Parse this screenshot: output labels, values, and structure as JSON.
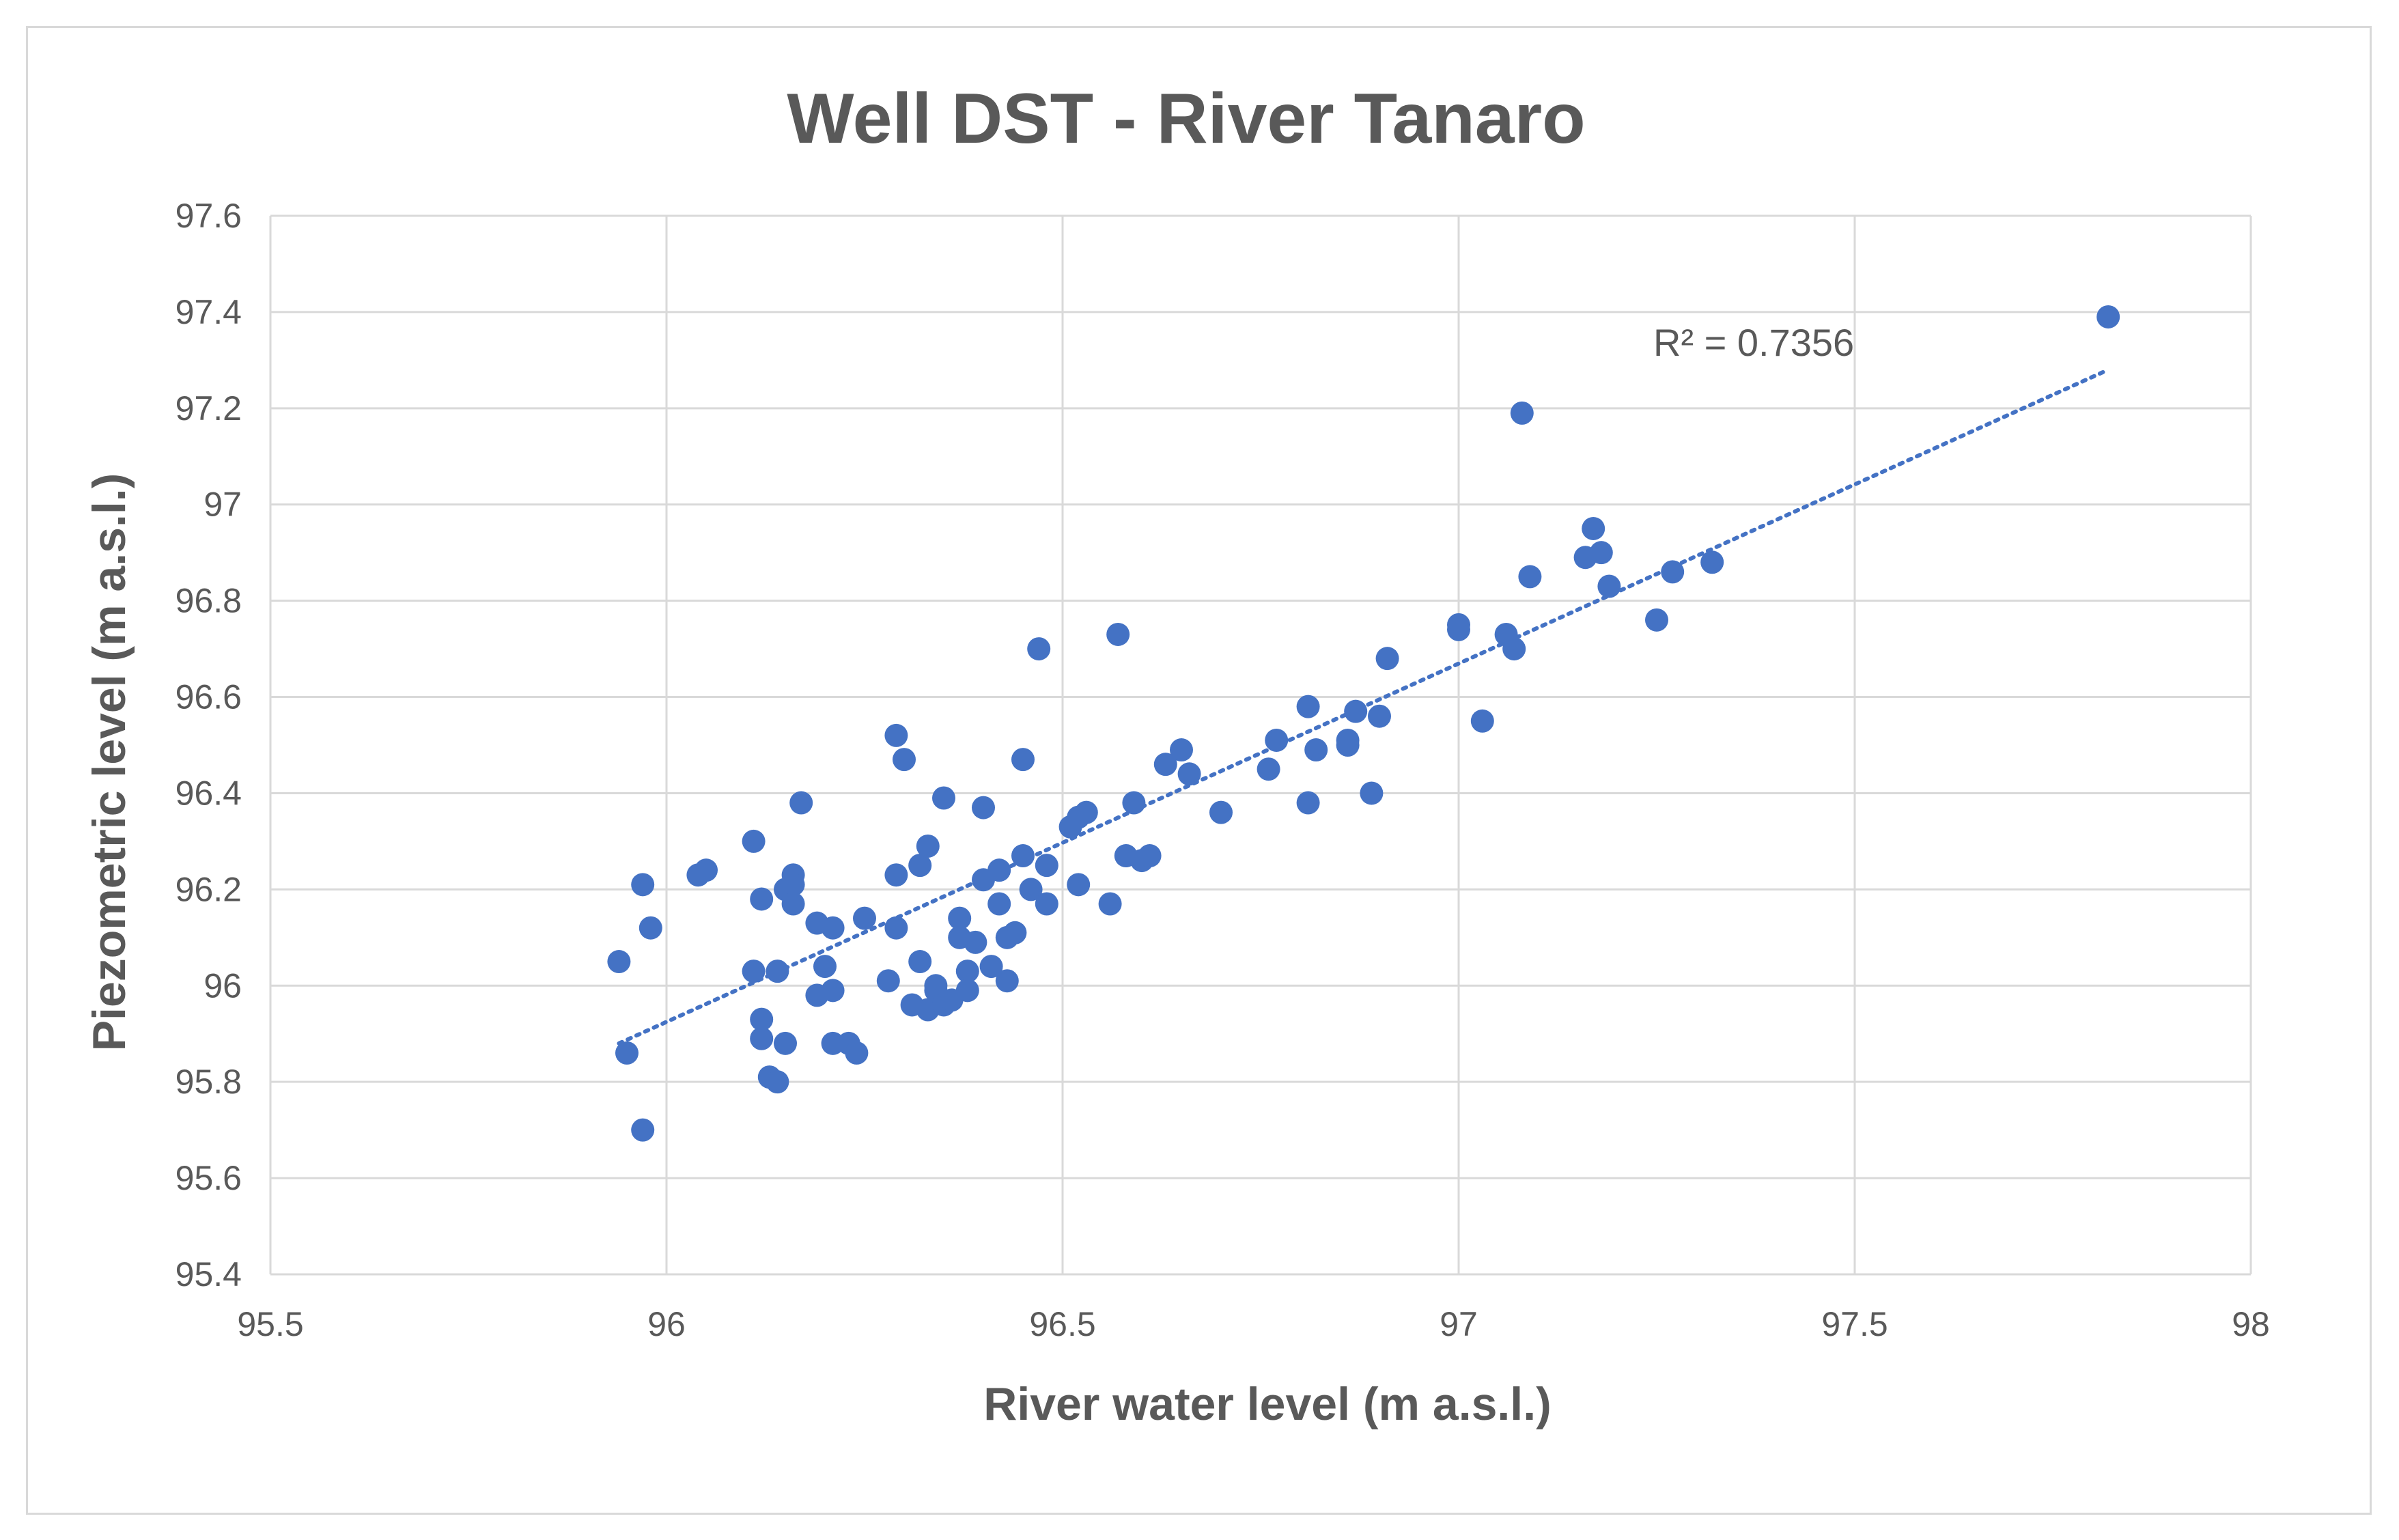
{
  "chart_data": {
    "type": "scatter",
    "title": "Well DST - River Tanaro",
    "xlabel": "River water level (m a.s.l.)",
    "ylabel": "Piezometric level (m a.s.l.)",
    "xlim": [
      95.5,
      98
    ],
    "ylim": [
      95.4,
      97.6
    ],
    "x_ticks": [
      "95.5",
      "96",
      "96.5",
      "97",
      "97.5",
      "98"
    ],
    "y_ticks": [
      "95.4",
      "95.6",
      "95.8",
      "96",
      "96.2",
      "96.4",
      "96.6",
      "96.8",
      "97",
      "97.2",
      "97.4",
      "97.6"
    ],
    "grid": true,
    "legend": "none",
    "colors": {
      "marker": "#4472c4",
      "trendline": "#4472c4",
      "grid": "#d9d9d9",
      "text": "#595959"
    },
    "series": [
      {
        "marker": "circle",
        "points": [
          [
            95.94,
            96.05
          ],
          [
            95.95,
            95.86
          ],
          [
            95.97,
            95.7
          ],
          [
            95.97,
            96.21
          ],
          [
            95.98,
            96.12
          ],
          [
            96.04,
            96.23
          ],
          [
            96.05,
            96.24
          ],
          [
            96.11,
            96.3
          ],
          [
            96.11,
            96.03
          ],
          [
            96.12,
            96.18
          ],
          [
            96.12,
            95.93
          ],
          [
            96.12,
            95.89
          ],
          [
            96.13,
            95.81
          ],
          [
            96.14,
            96.03
          ],
          [
            96.14,
            95.8
          ],
          [
            96.15,
            96.2
          ],
          [
            96.15,
            95.88
          ],
          [
            96.16,
            96.23
          ],
          [
            96.16,
            96.21
          ],
          [
            96.16,
            96.17
          ],
          [
            96.17,
            96.38
          ],
          [
            96.19,
            96.13
          ],
          [
            96.19,
            95.98
          ],
          [
            96.2,
            96.04
          ],
          [
            96.21,
            96.12
          ],
          [
            96.21,
            95.99
          ],
          [
            96.21,
            95.88
          ],
          [
            96.23,
            95.88
          ],
          [
            96.24,
            95.86
          ],
          [
            96.25,
            96.14
          ],
          [
            96.28,
            96.01
          ],
          [
            96.29,
            96.52
          ],
          [
            96.29,
            96.23
          ],
          [
            96.29,
            96.12
          ],
          [
            96.3,
            96.47
          ],
          [
            96.31,
            95.96
          ],
          [
            96.32,
            96.25
          ],
          [
            96.32,
            96.05
          ],
          [
            96.33,
            96.29
          ],
          [
            96.33,
            95.95
          ],
          [
            96.34,
            95.99
          ],
          [
            96.34,
            96.0
          ],
          [
            96.35,
            96.39
          ],
          [
            96.35,
            95.96
          ],
          [
            96.36,
            95.97
          ],
          [
            96.37,
            96.14
          ],
          [
            96.37,
            96.1
          ],
          [
            96.38,
            96.03
          ],
          [
            96.38,
            95.99
          ],
          [
            96.39,
            96.09
          ],
          [
            96.4,
            96.37
          ],
          [
            96.4,
            96.22
          ],
          [
            96.41,
            96.04
          ],
          [
            96.42,
            96.24
          ],
          [
            96.42,
            96.17
          ],
          [
            96.43,
            96.1
          ],
          [
            96.43,
            96.01
          ],
          [
            96.44,
            96.11
          ],
          [
            96.45,
            96.47
          ],
          [
            96.45,
            96.27
          ],
          [
            96.46,
            96.2
          ],
          [
            96.47,
            96.7
          ],
          [
            96.48,
            96.25
          ],
          [
            96.48,
            96.17
          ],
          [
            96.51,
            96.33
          ],
          [
            96.52,
            96.35
          ],
          [
            96.52,
            96.21
          ],
          [
            96.53,
            96.36
          ],
          [
            96.56,
            96.17
          ],
          [
            96.57,
            96.73
          ],
          [
            96.58,
            96.27
          ],
          [
            96.59,
            96.38
          ],
          [
            96.6,
            96.26
          ],
          [
            96.61,
            96.27
          ],
          [
            96.63,
            96.46
          ],
          [
            96.65,
            96.49
          ],
          [
            96.66,
            96.44
          ],
          [
            96.7,
            96.36
          ],
          [
            96.76,
            96.45
          ],
          [
            96.77,
            96.51
          ],
          [
            96.81,
            96.58
          ],
          [
            96.81,
            96.38
          ],
          [
            96.82,
            96.49
          ],
          [
            96.86,
            96.51
          ],
          [
            96.86,
            96.5
          ],
          [
            96.87,
            96.57
          ],
          [
            96.89,
            96.4
          ],
          [
            96.9,
            96.56
          ],
          [
            96.91,
            96.68
          ],
          [
            97.0,
            96.75
          ],
          [
            97.0,
            96.74
          ],
          [
            97.03,
            96.55
          ],
          [
            97.06,
            96.73
          ],
          [
            97.07,
            96.7
          ],
          [
            97.08,
            97.19
          ],
          [
            97.09,
            96.85
          ],
          [
            97.16,
            96.89
          ],
          [
            97.17,
            96.95
          ],
          [
            97.18,
            96.9
          ],
          [
            97.19,
            96.83
          ],
          [
            97.25,
            96.76
          ],
          [
            97.27,
            96.86
          ],
          [
            97.32,
            96.88
          ],
          [
            97.82,
            97.39
          ]
        ]
      }
    ],
    "trendline": {
      "type": "linear",
      "style": "dotted",
      "x_range": [
        95.94,
        97.82
      ],
      "y_range": [
        95.88,
        97.28
      ]
    },
    "annotations": [
      "R² = 0.7356"
    ]
  }
}
